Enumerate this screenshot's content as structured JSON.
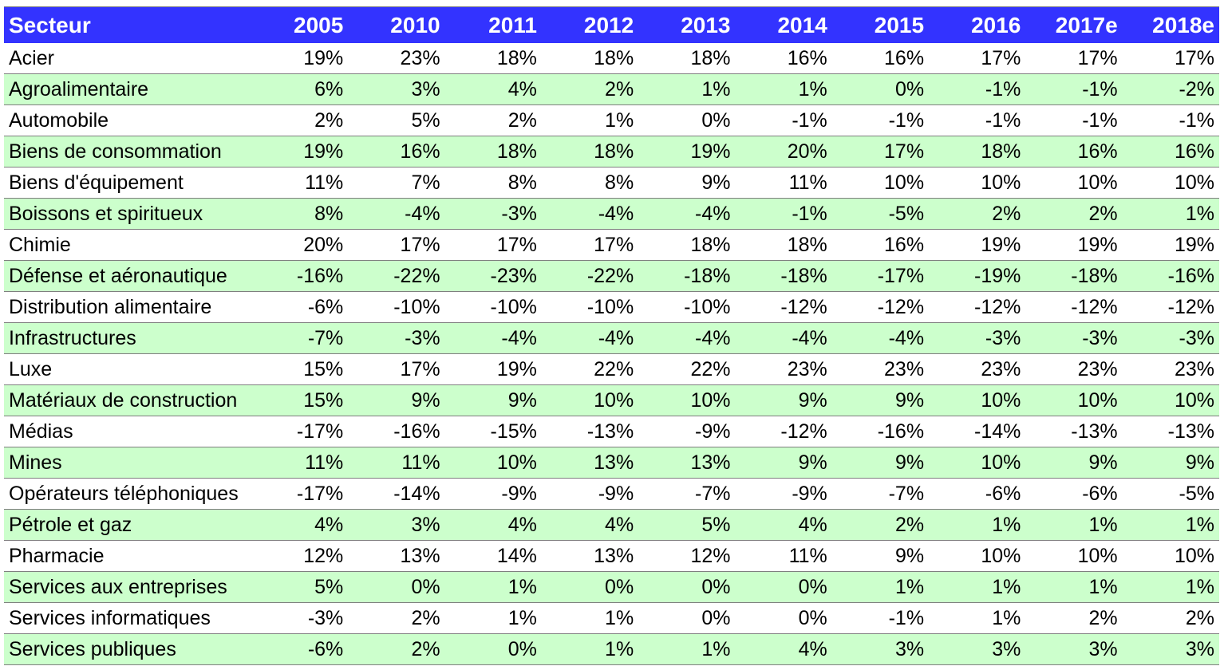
{
  "chart_data": {
    "type": "table",
    "header": {
      "sector_label": "Secteur",
      "years": [
        "2005",
        "2010",
        "2011",
        "2012",
        "2013",
        "2014",
        "2015",
        "2016",
        "2017e",
        "2018e"
      ]
    },
    "rows": [
      {
        "sector": "Acier",
        "values": [
          "19%",
          "23%",
          "18%",
          "18%",
          "18%",
          "16%",
          "16%",
          "17%",
          "17%",
          "17%"
        ]
      },
      {
        "sector": "Agroalimentaire",
        "values": [
          "6%",
          "3%",
          "4%",
          "2%",
          "1%",
          "1%",
          "0%",
          "-1%",
          "-1%",
          "-2%"
        ]
      },
      {
        "sector": "Automobile",
        "values": [
          "2%",
          "5%",
          "2%",
          "1%",
          "0%",
          "-1%",
          "-1%",
          "-1%",
          "-1%",
          "-1%"
        ]
      },
      {
        "sector": "Biens de consommation",
        "values": [
          "19%",
          "16%",
          "18%",
          "18%",
          "19%",
          "20%",
          "17%",
          "18%",
          "16%",
          "16%"
        ]
      },
      {
        "sector": "Biens d'équipement",
        "values": [
          "11%",
          "7%",
          "8%",
          "8%",
          "9%",
          "11%",
          "10%",
          "10%",
          "10%",
          "10%"
        ]
      },
      {
        "sector": "Boissons et spiritueux",
        "values": [
          "8%",
          "-4%",
          "-3%",
          "-4%",
          "-4%",
          "-1%",
          "-5%",
          "2%",
          "2%",
          "1%"
        ]
      },
      {
        "sector": "Chimie",
        "values": [
          "20%",
          "17%",
          "17%",
          "17%",
          "18%",
          "18%",
          "16%",
          "19%",
          "19%",
          "19%"
        ]
      },
      {
        "sector": "Défense et aéronautique",
        "values": [
          "-16%",
          "-22%",
          "-23%",
          "-22%",
          "-18%",
          "-18%",
          "-17%",
          "-19%",
          "-18%",
          "-16%"
        ]
      },
      {
        "sector": "Distribution alimentaire",
        "values": [
          "-6%",
          "-10%",
          "-10%",
          "-10%",
          "-10%",
          "-12%",
          "-12%",
          "-12%",
          "-12%",
          "-12%"
        ]
      },
      {
        "sector": "Infrastructures",
        "values": [
          "-7%",
          "-3%",
          "-4%",
          "-4%",
          "-4%",
          "-4%",
          "-4%",
          "-3%",
          "-3%",
          "-3%"
        ]
      },
      {
        "sector": "Luxe",
        "values": [
          "15%",
          "17%",
          "19%",
          "22%",
          "22%",
          "23%",
          "23%",
          "23%",
          "23%",
          "23%"
        ]
      },
      {
        "sector": "Matériaux de construction",
        "values": [
          "15%",
          "9%",
          "9%",
          "10%",
          "10%",
          "9%",
          "9%",
          "10%",
          "10%",
          "10%"
        ]
      },
      {
        "sector": "Médias",
        "values": [
          "-17%",
          "-16%",
          "-15%",
          "-13%",
          "-9%",
          "-12%",
          "-16%",
          "-14%",
          "-13%",
          "-13%"
        ]
      },
      {
        "sector": "Mines",
        "values": [
          "11%",
          "11%",
          "10%",
          "13%",
          "13%",
          "9%",
          "9%",
          "10%",
          "9%",
          "9%"
        ]
      },
      {
        "sector": "Opérateurs téléphoniques",
        "values": [
          "-17%",
          "-14%",
          "-9%",
          "-9%",
          "-7%",
          "-9%",
          "-7%",
          "-6%",
          "-6%",
          "-5%"
        ]
      },
      {
        "sector": "Pétrole et gaz",
        "values": [
          "4%",
          "3%",
          "4%",
          "4%",
          "5%",
          "4%",
          "2%",
          "1%",
          "1%",
          "1%"
        ]
      },
      {
        "sector": "Pharmacie",
        "values": [
          "12%",
          "13%",
          "14%",
          "13%",
          "12%",
          "11%",
          "9%",
          "10%",
          "10%",
          "10%"
        ]
      },
      {
        "sector": "Services aux entreprises",
        "values": [
          "5%",
          "0%",
          "1%",
          "0%",
          "0%",
          "0%",
          "1%",
          "1%",
          "1%",
          "1%"
        ]
      },
      {
        "sector": "Services informatiques",
        "values": [
          "-3%",
          "2%",
          "1%",
          "1%",
          "0%",
          "0%",
          "-1%",
          "1%",
          "2%",
          "2%"
        ]
      },
      {
        "sector": "Services publiques",
        "values": [
          "-6%",
          "2%",
          "0%",
          "1%",
          "1%",
          "4%",
          "3%",
          "3%",
          "3%",
          "3%"
        ]
      }
    ],
    "colors": {
      "header_bg": "#3333ff",
      "header_text": "#ffffff",
      "alt_row_bg": "#ccffcc",
      "row_bg": "#ffffff",
      "row_divider": "#7f7f7f"
    }
  }
}
